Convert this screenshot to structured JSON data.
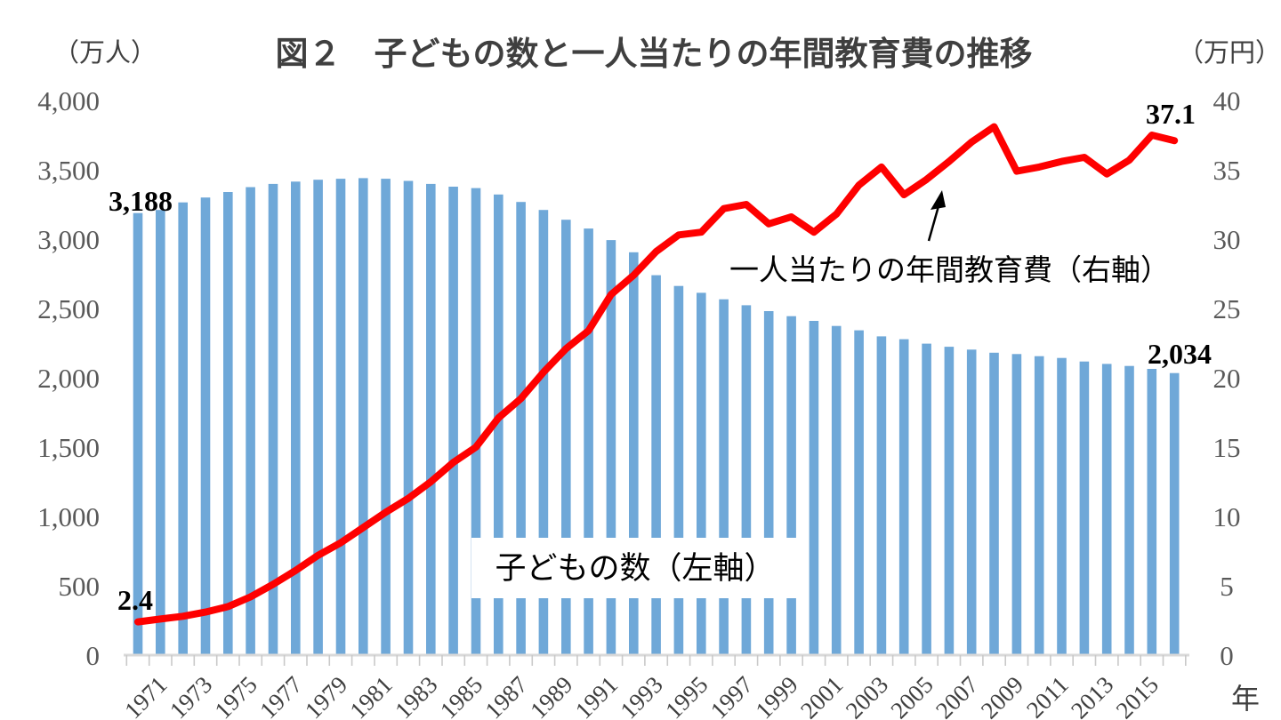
{
  "title": "図２　子どもの数と一人当たりの年間教育費の推移",
  "left_axis": {
    "unit": "（万人）",
    "ticks": [
      "0",
      "500",
      "1,000",
      "1,500",
      "2,000",
      "2,500",
      "3,000",
      "3,500",
      "4,000"
    ],
    "max": 4000
  },
  "right_axis": {
    "unit": "（万円）",
    "ticks": [
      "0",
      "5",
      "10",
      "15",
      "20",
      "25",
      "30",
      "35",
      "40"
    ],
    "max": 40
  },
  "x_axis": {
    "unit_label": "年",
    "labeled_years": [
      "1971",
      "1973",
      "1975",
      "1977",
      "1979",
      "1981",
      "1983",
      "1985",
      "1987",
      "1989",
      "1991",
      "1993",
      "1995",
      "1997",
      "1999",
      "2001",
      "2003",
      "2005",
      "2007",
      "2009",
      "2011",
      "2013",
      "2015"
    ]
  },
  "data_labels": {
    "bar_first": "3,188",
    "bar_last": "2,034",
    "line_first": "2.4",
    "line_last": "37.1"
  },
  "annotations": {
    "bar_series_label": "子どもの数（左軸）",
    "line_series_label": "一人当たりの年間教育費（右軸）"
  },
  "colors": {
    "bar": "#6FA8D8",
    "line": "#FE0000",
    "axis_text": "#595959",
    "year_text": "#3F3F3F",
    "title_text": "#3F3F3F",
    "label_text": "#000000",
    "axis_line": "#D9D9D9",
    "tick": "#C9C9C9",
    "arrow": "#000000"
  },
  "chart_data": {
    "type": "combo",
    "title": "図２　子どもの数と一人当たりの年間教育費の推移",
    "categories": [
      1970,
      1971,
      1972,
      1973,
      1974,
      1975,
      1976,
      1977,
      1978,
      1979,
      1980,
      1981,
      1982,
      1983,
      1984,
      1985,
      1986,
      1987,
      1988,
      1989,
      1990,
      1991,
      1992,
      1993,
      1994,
      1995,
      1996,
      1997,
      1998,
      1999,
      2000,
      2001,
      2002,
      2003,
      2004,
      2005,
      2006,
      2007,
      2008,
      2009,
      2010,
      2011,
      2012,
      2013,
      2014,
      2015,
      2016
    ],
    "series": [
      {
        "name": "子どもの数（左軸）",
        "type": "bar",
        "axis": "left",
        "unit": "万人",
        "values": [
          3188,
          3210,
          3265,
          3300,
          3340,
          3375,
          3398,
          3415,
          3428,
          3435,
          3440,
          3435,
          3420,
          3398,
          3378,
          3368,
          3322,
          3268,
          3210,
          3140,
          3076,
          2993,
          2905,
          2740,
          2662,
          2613,
          2566,
          2523,
          2481,
          2444,
          2410,
          2374,
          2342,
          2299,
          2278,
          2246,
          2224,
          2203,
          2181,
          2171,
          2156,
          2143,
          2117,
          2100,
          2085,
          2064,
          2034
        ]
      },
      {
        "name": "一人当たりの年間教育費（右軸）",
        "type": "line",
        "axis": "right",
        "unit": "万円",
        "values": [
          2.4,
          2.6,
          2.8,
          3.1,
          3.5,
          4.2,
          5.1,
          6.1,
          7.2,
          8.1,
          9.2,
          10.3,
          11.3,
          12.5,
          13.9,
          15.0,
          17.1,
          18.5,
          20.4,
          22.1,
          23.4,
          26.0,
          27.4,
          29.1,
          30.3,
          30.5,
          32.2,
          32.5,
          31.1,
          31.6,
          30.5,
          31.8,
          33.9,
          35.2,
          33.2,
          34.3,
          35.6,
          37.0,
          38.1,
          34.9,
          35.2,
          35.6,
          35.9,
          34.7,
          35.7,
          37.5,
          37.1
        ]
      }
    ],
    "left_ylim": [
      0,
      4000
    ],
    "right_ylim": [
      0,
      40
    ],
    "xlabel": "年",
    "left_axis_unit": "（万人）",
    "right_axis_unit": "（万円）",
    "grid": false,
    "legend_position": "inline-annotations"
  }
}
